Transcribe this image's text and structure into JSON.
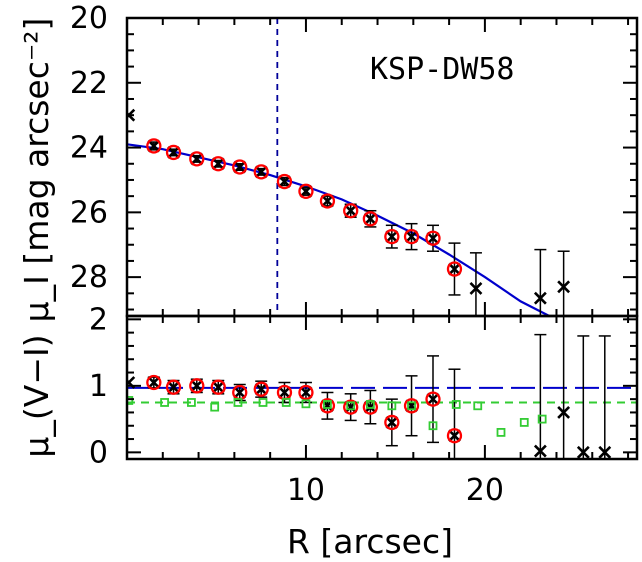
{
  "chart_data": [
    {
      "type": "scatter",
      "panel": "top",
      "annotation": "KSP-DW58",
      "ylabel": "μ_I [mag arcsec⁻²]",
      "xlim": [
        0,
        28.5
      ],
      "ylim": [
        29.2,
        20
      ],
      "y_inverted": true,
      "y_ticks": [
        20,
        22,
        24,
        26,
        28
      ],
      "vertical_dashed_line_x": 8.4,
      "series": [
        {
          "marker": "cross",
          "color": "#000000",
          "x": [
            0.1,
            1.5,
            2.6,
            3.9,
            5.1,
            6.3,
            7.5,
            8.8,
            10.0,
            11.2,
            12.5,
            13.6,
            14.8,
            15.9,
            17.1,
            18.3,
            19.5,
            23.1,
            24.4
          ],
          "y": [
            23.0,
            23.95,
            24.15,
            24.35,
            24.5,
            24.6,
            24.75,
            25.05,
            25.35,
            25.65,
            25.95,
            26.2,
            26.75,
            26.75,
            26.8,
            27.75,
            28.35,
            28.65,
            28.3
          ],
          "yerr": [
            0,
            0.12,
            0.1,
            0.1,
            0.1,
            0.1,
            0.1,
            0.12,
            0.12,
            0.15,
            0.2,
            0.25,
            0.35,
            0.4,
            0.4,
            0.8,
            1.1,
            1.5,
            1.1
          ]
        },
        {
          "marker": "open-circle",
          "color": "#ff0000",
          "x": [
            1.5,
            2.6,
            3.9,
            5.1,
            6.3,
            7.5,
            8.8,
            10.0,
            11.2,
            12.5,
            13.6,
            14.8,
            15.9,
            17.1,
            18.3
          ],
          "y": [
            23.95,
            24.15,
            24.35,
            24.5,
            24.6,
            24.75,
            25.05,
            25.35,
            25.65,
            25.95,
            26.2,
            26.75,
            26.75,
            26.8,
            27.75
          ]
        }
      ],
      "fit": {
        "color": "#0000cc",
        "x": [
          0,
          2,
          4,
          6,
          8,
          10,
          12,
          14,
          16,
          18,
          20,
          22,
          23.6
        ],
        "y": [
          23.9,
          24.05,
          24.3,
          24.55,
          24.85,
          25.2,
          25.6,
          26.1,
          26.65,
          27.3,
          28.0,
          28.75,
          29.2
        ]
      }
    },
    {
      "type": "scatter",
      "panel": "bottom",
      "xlabel": "R [arcsec]",
      "ylabel": "μ_(V−I)",
      "xlim": [
        0,
        28.5
      ],
      "ylim": [
        -0.1,
        2.05
      ],
      "y_ticks": [
        0,
        1,
        2
      ],
      "x_ticks": [
        10,
        20
      ],
      "series": [
        {
          "marker": "cross",
          "color": "#000000",
          "x": [
            0.1,
            1.5,
            2.6,
            3.9,
            5.1,
            6.3,
            7.5,
            8.8,
            10.0,
            11.2,
            12.5,
            13.6,
            14.8,
            15.9,
            17.1,
            18.3,
            23.1,
            24.4,
            25.5,
            26.7
          ],
          "y": [
            1.05,
            1.05,
            0.98,
            1.0,
            0.98,
            0.9,
            0.95,
            0.9,
            0.9,
            0.7,
            0.68,
            0.68,
            0.45,
            0.7,
            0.8,
            0.25,
            0.02,
            0.6,
            0.0,
            0.0
          ],
          "yerr": [
            0,
            0.08,
            0.1,
            0.1,
            0.1,
            0.12,
            0.12,
            0.15,
            0.15,
            0.2,
            0.2,
            0.25,
            0.35,
            0.45,
            0.65,
            1.0,
            1.75,
            1.75,
            1.75,
            1.75
          ]
        },
        {
          "marker": "open-circle",
          "color": "#ff0000",
          "x": [
            1.5,
            2.6,
            3.9,
            5.1,
            6.3,
            7.5,
            8.8,
            10.0,
            11.2,
            12.5,
            13.6,
            14.8,
            15.9,
            17.1,
            18.3
          ],
          "y": [
            1.05,
            0.98,
            1.0,
            0.98,
            0.9,
            0.95,
            0.9,
            0.9,
            0.7,
            0.68,
            0.68,
            0.45,
            0.7,
            0.8,
            0.25
          ]
        },
        {
          "marker": "open-square",
          "color": "#33cc33",
          "x": [
            0.1,
            2.1,
            3.6,
            4.9,
            6.2,
            7.6,
            8.9,
            10.0,
            11.2,
            12.5,
            13.6,
            14.8,
            15.9,
            17.1,
            18.4,
            19.6,
            20.9,
            22.2,
            23.2
          ],
          "y": [
            0.78,
            0.75,
            0.75,
            0.68,
            0.75,
            0.75,
            0.75,
            0.73,
            0.72,
            0.7,
            0.72,
            0.7,
            0.7,
            0.4,
            0.72,
            0.7,
            0.3,
            0.45,
            0.5
          ]
        }
      ],
      "reference_lines": [
        {
          "style": "long-dash",
          "color": "#0000cc",
          "y": 0.97
        },
        {
          "style": "short-dash",
          "color": "#33cc33",
          "y": 0.75
        }
      ]
    }
  ]
}
